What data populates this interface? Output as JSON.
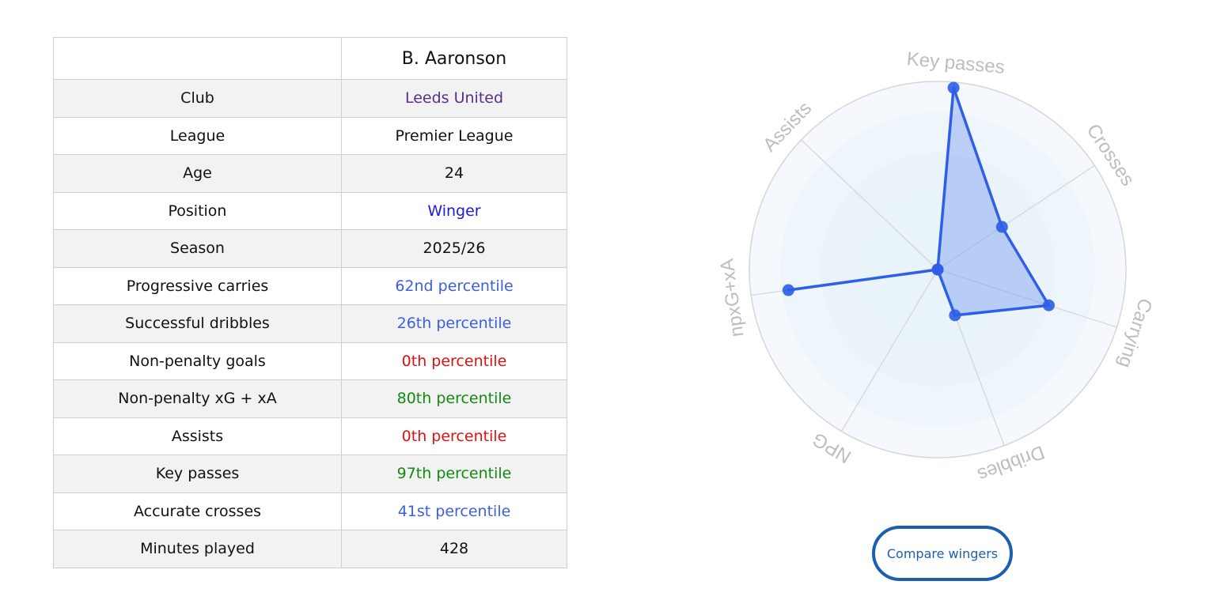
{
  "table": {
    "header": "B. Aaronson",
    "rows": [
      {
        "label": "Club",
        "value": "Leeds United",
        "color": "#5b2c8f"
      },
      {
        "label": "League",
        "value": "Premier League",
        "color": "#111111"
      },
      {
        "label": "Age",
        "value": "24",
        "color": "#111111"
      },
      {
        "label": "Position",
        "value": "Winger",
        "color": "#1a1adb"
      },
      {
        "label": "Season",
        "value": "2025/26",
        "color": "#111111"
      },
      {
        "label": "Progressive carries",
        "value": "62nd percentile",
        "color": "#3b5fe0"
      },
      {
        "label": "Successful dribbles",
        "value": "26th percentile",
        "color": "#3b5fe0"
      },
      {
        "label": "Non-penalty goals",
        "value": "0th percentile",
        "color": "#e01010"
      },
      {
        "label": "Non-penalty xG + xA",
        "value": "80th percentile",
        "color": "#128a12"
      },
      {
        "label": "Assists",
        "value": "0th percentile",
        "color": "#e01010"
      },
      {
        "label": "Key passes",
        "value": "97th percentile",
        "color": "#128a12"
      },
      {
        "label": "Accurate crosses",
        "value": "41st percentile",
        "color": "#3b5fe0"
      },
      {
        "label": "Minutes played",
        "value": "428",
        "color": "#111111"
      }
    ]
  },
  "chart_data": {
    "type": "radar",
    "axes": [
      "Key passes",
      "Crosses",
      "Carrying",
      "Dribbles",
      "NPG",
      "npxG+xA",
      "Assists"
    ],
    "series": [
      {
        "values": [
          97,
          41,
          62,
          26,
          0,
          80,
          0
        ]
      }
    ],
    "range": [
      0,
      100
    ],
    "colors": {
      "line": "#2f5fe6",
      "fill": "#7c9ff0",
      "grid": "#d6d6d6",
      "ring_fill": "#e8f2fa",
      "label": "#bdbdbd"
    }
  },
  "button": {
    "label": "Compare wingers"
  }
}
